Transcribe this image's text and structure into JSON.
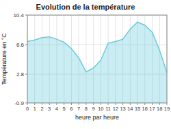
{
  "chart_data": {
    "type": "area",
    "title": "Evolution de la température",
    "xlabel": "heure par heure",
    "ylabel": "Température en °C",
    "x": [
      0,
      1,
      2,
      3,
      4,
      5,
      6,
      7,
      8,
      9,
      10,
      11,
      12,
      13,
      14,
      15,
      16,
      17,
      18,
      19
    ],
    "values": [
      7.0,
      7.2,
      7.5,
      7.6,
      7.3,
      6.9,
      6.1,
      4.9,
      3.1,
      3.6,
      4.6,
      6.8,
      7.0,
      7.3,
      8.6,
      9.5,
      9.1,
      8.2,
      5.9,
      3.0
    ],
    "xlim": [
      0,
      19
    ],
    "xticks": [
      0,
      1,
      2,
      3,
      4,
      5,
      6,
      7,
      8,
      9,
      10,
      11,
      12,
      13,
      14,
      15,
      16,
      17,
      18,
      19
    ],
    "ylim": [
      -0.9,
      10.4
    ],
    "yticks": [
      -0.9,
      2.8,
      6.6,
      10.4
    ],
    "grid": true,
    "color": "#66ccdd"
  }
}
